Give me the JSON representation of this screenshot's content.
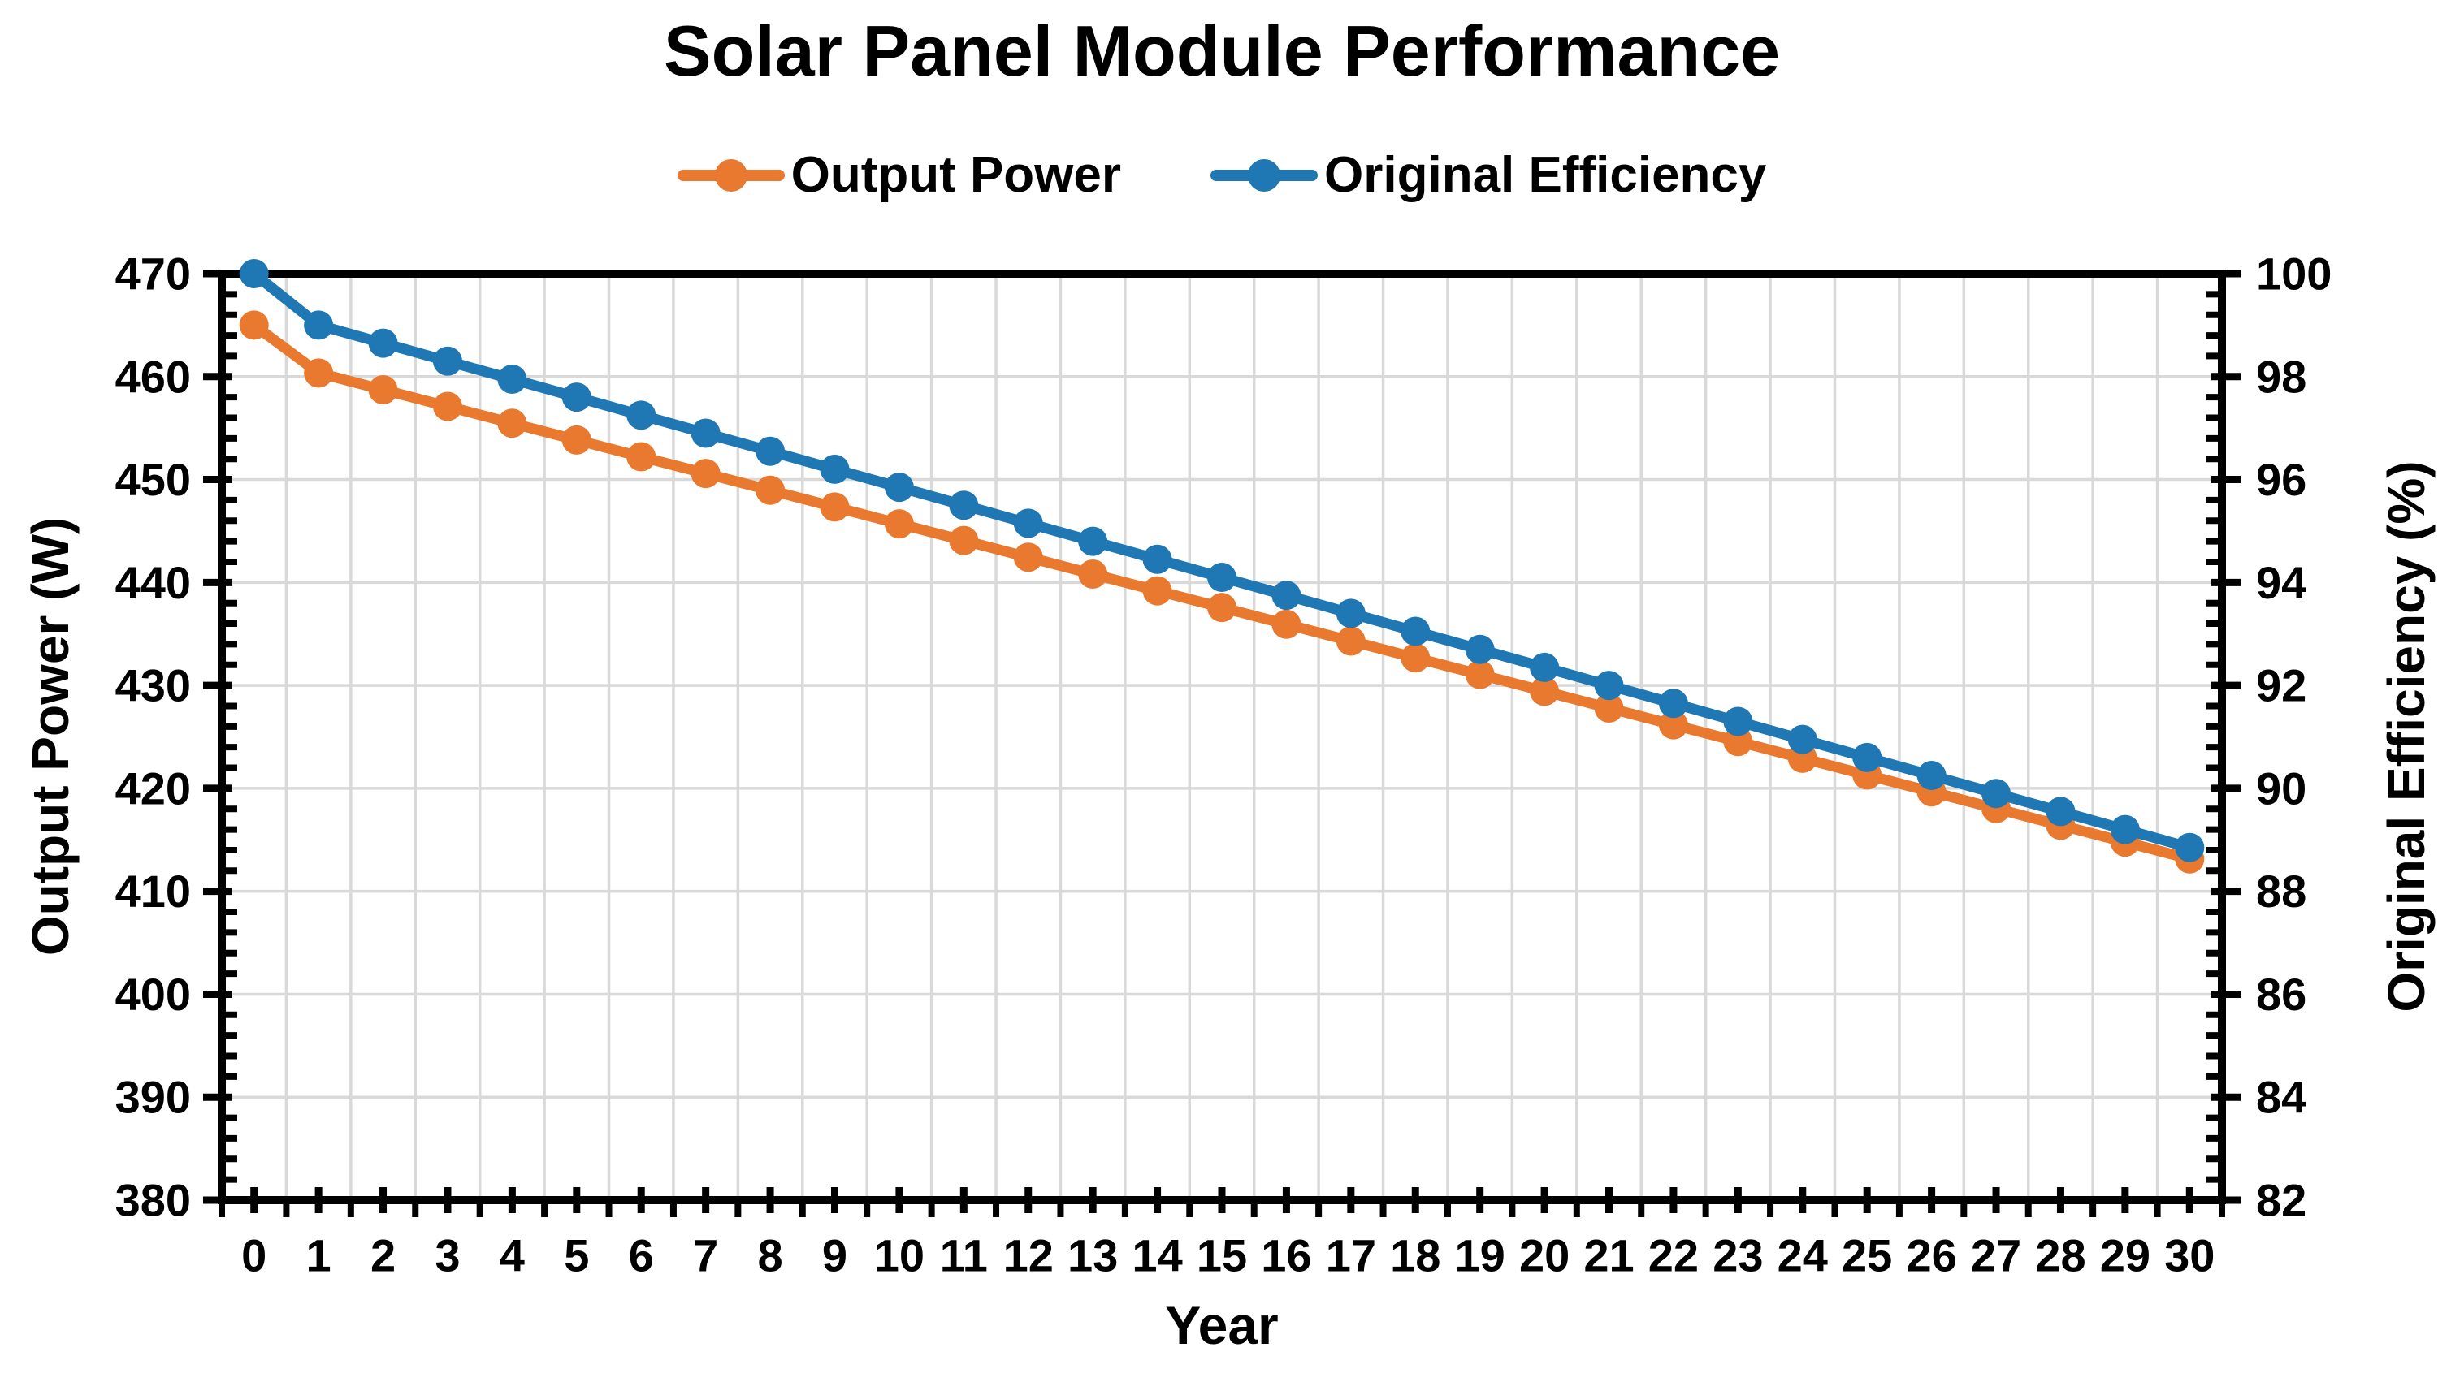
{
  "chart_data": {
    "type": "line",
    "title": "Solar Panel Module Performance",
    "x_label": "Year",
    "x": [
      0,
      1,
      2,
      3,
      4,
      5,
      6,
      7,
      8,
      9,
      10,
      11,
      12,
      13,
      14,
      15,
      16,
      17,
      18,
      19,
      20,
      21,
      22,
      23,
      24,
      25,
      26,
      27,
      28,
      29,
      30
    ],
    "y_left_axis": {
      "label": "Output Power (W)",
      "min": 380,
      "max": 470,
      "major_step": 10,
      "minor_step": 2,
      "ticks": [
        380,
        390,
        400,
        410,
        420,
        430,
        440,
        450,
        460,
        470
      ]
    },
    "y_right_axis": {
      "label": "Original Efficiency (%)",
      "min": 82,
      "max": 100,
      "major_step": 2,
      "minor_step": 0.4,
      "ticks": [
        82,
        84,
        86,
        88,
        90,
        92,
        94,
        96,
        98,
        100
      ]
    },
    "series": [
      {
        "name": "Output Power",
        "axis": "left",
        "color": "#E8792E",
        "marker": "circle",
        "values": [
          465,
          460.35,
          458.72,
          457.1,
          455.47,
          453.84,
          452.21,
          450.59,
          448.96,
          447.33,
          445.7,
          444.08,
          442.45,
          440.82,
          439.19,
          437.57,
          435.94,
          434.31,
          432.68,
          431.06,
          429.43,
          427.8,
          426.17,
          424.55,
          422.92,
          421.29,
          419.66,
          418.04,
          416.41,
          414.78,
          413.15
        ]
      },
      {
        "name": "Original Efficiency",
        "axis": "right",
        "color": "#1F77B4",
        "marker": "circle",
        "values": [
          100,
          99,
          98.65,
          98.3,
          97.95,
          97.6,
          97.25,
          96.9,
          96.55,
          96.2,
          95.85,
          95.5,
          95.15,
          94.8,
          94.45,
          94.1,
          93.75,
          93.4,
          93.05,
          92.7,
          92.35,
          92,
          91.65,
          91.3,
          90.95,
          90.6,
          90.25,
          89.9,
          89.55,
          89.2,
          88.85
        ]
      }
    ],
    "grid": true,
    "grid_color": "#D9D9D9",
    "axis_color": "#000000",
    "background": "#FFFFFF",
    "legend_position": "top"
  }
}
